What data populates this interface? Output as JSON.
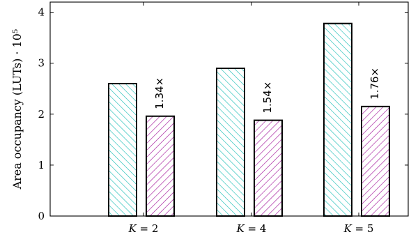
{
  "chart_data": {
    "type": "bar",
    "title": "",
    "xlabel": "",
    "ylabel": "Area occupancy (LUTs) · 10⁵",
    "categories": [
      "K = 2",
      "K = 4",
      "K = 5"
    ],
    "category_parts": [
      {
        "var": "K",
        "rest": " = 2"
      },
      {
        "var": "K",
        "rest": " = 4"
      },
      {
        "var": "K",
        "rest": " = 5"
      }
    ],
    "ylim": [
      0,
      4.2
    ],
    "yticks": [
      0,
      1,
      2,
      3,
      4
    ],
    "ytick_labels": [
      "0",
      "1",
      "2",
      "3",
      "4"
    ],
    "grid": false,
    "legend": null,
    "series": [
      {
        "values": [
          2.6,
          2.9,
          3.78
        ],
        "fill_pattern": "diagonal-hatch",
        "color": "#1fbfb8"
      },
      {
        "values": [
          1.96,
          1.88,
          2.15
        ],
        "fill_pattern": "diagonal-hatch",
        "color": "#a3169b"
      }
    ],
    "annotations": [
      "1.34×",
      "1.54×",
      "1.76×"
    ]
  }
}
